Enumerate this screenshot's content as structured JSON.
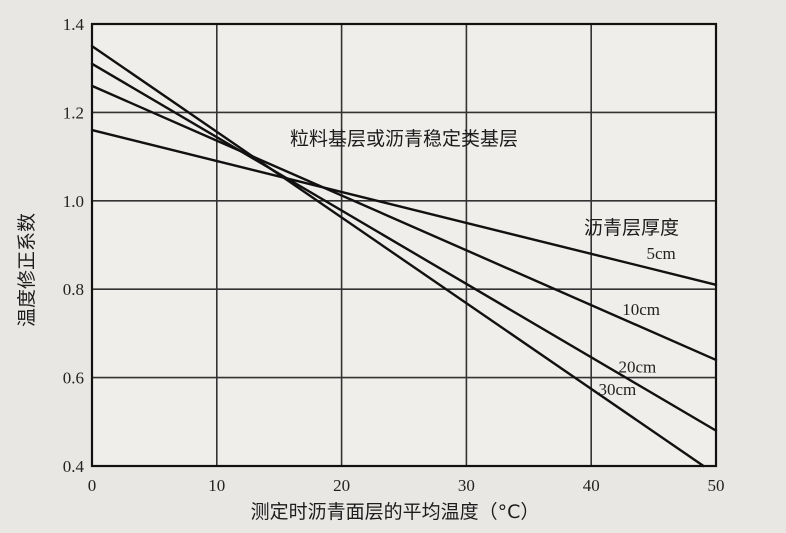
{
  "chart_data": {
    "type": "line",
    "title": "",
    "xlabel": "测定时沥青面层的平均温度（°C）",
    "ylabel": "温度修正系数",
    "xlim": [
      0,
      50
    ],
    "ylim": [
      0.4,
      1.4
    ],
    "xticks": [
      "0",
      "10",
      "20",
      "30",
      "40",
      "50"
    ],
    "yticks": [
      "0.4",
      "0.6",
      "0.8",
      "1.0",
      "1.2",
      "1.4"
    ],
    "grid": true,
    "annotations": {
      "region_label": "粒料基层或沥青稳定类基层",
      "legend_title": "沥青层厚度"
    },
    "series": [
      {
        "name": "5cm",
        "x": [
          0,
          50
        ],
        "y": [
          1.16,
          0.81
        ]
      },
      {
        "name": "10cm",
        "x": [
          0,
          50
        ],
        "y": [
          1.26,
          0.64
        ]
      },
      {
        "name": "20cm",
        "x": [
          0,
          50
        ],
        "y": [
          1.31,
          0.48
        ]
      },
      {
        "name": "30cm",
        "x": [
          0,
          49
        ],
        "y": [
          1.35,
          0.4
        ]
      }
    ]
  }
}
